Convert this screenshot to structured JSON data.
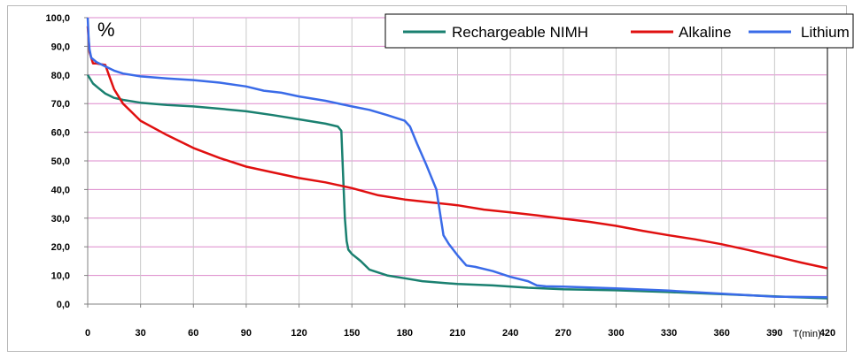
{
  "chart_data": {
    "type": "line",
    "title": "",
    "ylabel": "%",
    "xlabel": "T(min)",
    "xlim": [
      0,
      420
    ],
    "ylim": [
      0,
      100
    ],
    "x_ticks": [
      0,
      30,
      60,
      90,
      120,
      150,
      180,
      210,
      240,
      270,
      300,
      330,
      360,
      390,
      420
    ],
    "x_tick_labels": [
      "0",
      "30",
      "60",
      "90",
      "120",
      "150",
      "180",
      "210",
      "240",
      "270",
      "300",
      "330",
      "360",
      "390",
      "420"
    ],
    "y_ticks": [
      0,
      10,
      20,
      30,
      40,
      50,
      60,
      70,
      80,
      90,
      100
    ],
    "y_tick_labels": [
      "0,0",
      "10,0",
      "20,0",
      "30,0",
      "40,0",
      "50,0",
      "60,0",
      "70,0",
      "80,0",
      "90,0",
      "100,0"
    ],
    "grid": true,
    "legend_position": "top-right",
    "series": [
      {
        "name": "Rechargeable  NIMH",
        "color": "#1a8070",
        "x": [
          0,
          1,
          3,
          6,
          10,
          15,
          20,
          30,
          45,
          60,
          75,
          90,
          105,
          120,
          135,
          142,
          144,
          145,
          146,
          147,
          148,
          150,
          155,
          160,
          170,
          180,
          190,
          200,
          210,
          230,
          250,
          270,
          300,
          330,
          360,
          390,
          420
        ],
        "y": [
          80,
          79,
          77,
          75.5,
          73.5,
          72,
          71.3,
          70.3,
          69.5,
          69,
          68.2,
          67.3,
          66,
          64.5,
          63,
          62,
          60.5,
          45,
          30,
          22,
          19,
          17.5,
          15,
          12,
          10,
          9,
          8,
          7.5,
          7,
          6.5,
          5.7,
          5.2,
          4.8,
          4.2,
          3.5,
          2.7,
          2
        ]
      },
      {
        "name": "Alkaline",
        "color": "#e01010",
        "x": [
          0,
          1,
          3,
          5,
          10,
          12,
          15,
          20,
          25,
          30,
          45,
          60,
          75,
          90,
          105,
          120,
          135,
          150,
          165,
          180,
          195,
          210,
          225,
          240,
          255,
          270,
          285,
          300,
          315,
          330,
          345,
          360,
          375,
          390,
          405,
          420
        ],
        "y": [
          97,
          88,
          84,
          84,
          83.5,
          80,
          75,
          70,
          67,
          64,
          59,
          54.5,
          51,
          48,
          46,
          44,
          42.5,
          40.5,
          38,
          36.5,
          35.5,
          34.5,
          33,
          32,
          31,
          29.8,
          28.7,
          27.3,
          25.6,
          24,
          22.6,
          20.9,
          18.9,
          16.7,
          14.5,
          12.5
        ]
      },
      {
        "name": "Lithium",
        "color": "#3a6be8",
        "x": [
          0,
          0.5,
          1,
          2,
          5,
          10,
          15,
          20,
          30,
          45,
          60,
          75,
          90,
          100,
          110,
          120,
          135,
          150,
          160,
          170,
          180,
          183,
          187,
          192,
          198,
          200,
          202,
          205,
          210,
          215,
          220,
          230,
          240,
          250,
          255,
          260,
          270,
          300,
          330,
          360,
          390,
          420
        ],
        "y": [
          100,
          93,
          89,
          86,
          84.5,
          83,
          81.5,
          80.5,
          79.5,
          78.8,
          78.2,
          77.3,
          76,
          74.5,
          73.8,
          72.5,
          71,
          69,
          67.8,
          66,
          64,
          62,
          56,
          49,
          40,
          32,
          24,
          21,
          17,
          13.5,
          13,
          11.5,
          9.5,
          8,
          6.5,
          6.2,
          6.1,
          5.5,
          4.7,
          3.6,
          2.6,
          2.4
        ]
      }
    ]
  }
}
